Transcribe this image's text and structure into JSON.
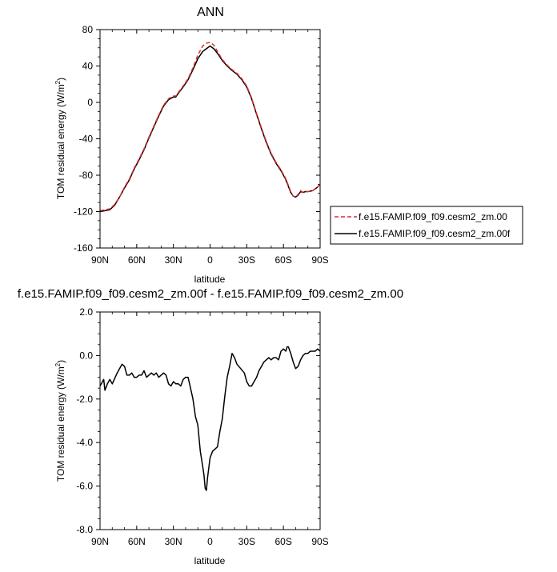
{
  "chart_data": [
    {
      "type": "line",
      "title": "ANN",
      "xlabel": "latitude",
      "ylabel": "TOM residual energy (W/m",
      "ylabel_sup": "2",
      "ylabel_close": ")",
      "xlim": [
        90,
        -90
      ],
      "ylim": [
        -160,
        80
      ],
      "xticks": [
        {
          "value": 90,
          "label": "90N"
        },
        {
          "value": 60,
          "label": "60N"
        },
        {
          "value": 30,
          "label": "30N"
        },
        {
          "value": 0,
          "label": "0"
        },
        {
          "value": -30,
          "label": "30S"
        },
        {
          "value": -60,
          "label": "60S"
        },
        {
          "value": -90,
          "label": "90S"
        }
      ],
      "yticks": [
        {
          "value": 80,
          "label": "80"
        },
        {
          "value": 40,
          "label": "40"
        },
        {
          "value": 0,
          "label": "0"
        },
        {
          "value": -40,
          "label": "-40"
        },
        {
          "value": -80,
          "label": "-80"
        },
        {
          "value": -120,
          "label": "-120"
        },
        {
          "value": -160,
          "label": "-160"
        }
      ],
      "grid": false,
      "legend": "right",
      "series": [
        {
          "name": "f.e15.FAMIP.f09_f09.cesm2_zm.00",
          "color": "#e8282b",
          "dash": true,
          "x": [
            90,
            86,
            82,
            78,
            74,
            70,
            66,
            62,
            58,
            54,
            50,
            46,
            42,
            38,
            34,
            30,
            28,
            26,
            22,
            18,
            14,
            10,
            6,
            3,
            0,
            -3,
            -6,
            -10,
            -14,
            -18,
            -22,
            -26,
            -30,
            -34,
            -38,
            -42,
            -46,
            -50,
            -54,
            -58,
            -62,
            -66,
            -68,
            -70,
            -72,
            -74,
            -76,
            -78,
            -80,
            -84,
            -88,
            -90
          ],
          "y": [
            -119,
            -118,
            -117,
            -112,
            -104,
            -93,
            -84,
            -72,
            -62,
            -51,
            -38,
            -26,
            -14,
            -3,
            4,
            7,
            7,
            11,
            18,
            26,
            38,
            52,
            62,
            65,
            66,
            63,
            56,
            47,
            41,
            36,
            32,
            26,
            18,
            5,
            -12,
            -28,
            -43,
            -56,
            -66,
            -74,
            -84,
            -98,
            -103,
            -104,
            -101,
            -97,
            -99,
            -98,
            -98,
            -97,
            -93,
            -90
          ]
        },
        {
          "name": "f.e15.FAMIP.f09_f09.cesm2_zm.00f",
          "color": "#000000",
          "dash": false,
          "x": [
            90,
            86,
            82,
            78,
            74,
            70,
            66,
            62,
            58,
            54,
            50,
            46,
            42,
            38,
            34,
            30,
            28,
            26,
            22,
            18,
            14,
            10,
            6,
            3,
            0,
            -3,
            -6,
            -10,
            -14,
            -18,
            -22,
            -26,
            -30,
            -34,
            -38,
            -42,
            -46,
            -50,
            -54,
            -58,
            -62,
            -66,
            -68,
            -70,
            -72,
            -74,
            -76,
            -78,
            -80,
            -84,
            -88,
            -90
          ],
          "y": [
            -120,
            -119,
            -118,
            -113,
            -104,
            -94,
            -85,
            -73,
            -63,
            -52,
            -39,
            -27,
            -15,
            -4,
            3,
            6,
            6,
            10,
            17,
            25,
            36,
            48,
            56,
            59,
            62,
            59,
            54,
            46,
            40,
            35,
            31,
            25,
            17,
            4,
            -13,
            -29,
            -44,
            -57,
            -67,
            -75,
            -85,
            -99,
            -103,
            -104,
            -102,
            -98,
            -99,
            -98,
            -98,
            -97,
            -93,
            -90
          ]
        }
      ]
    },
    {
      "type": "line",
      "title": "f.e15.FAMIP.f09_f09.cesm2_zm.00f - f.e15.FAMIP.f09_f09.cesm2_zm.00",
      "xlabel": "latitude",
      "ylabel": "TOM residual energy (W/m",
      "ylabel_sup": "2",
      "ylabel_close": ")",
      "xlim": [
        90,
        -90
      ],
      "ylim": [
        -8.0,
        2.0
      ],
      "xticks": [
        {
          "value": 90,
          "label": "90N"
        },
        {
          "value": 60,
          "label": "60N"
        },
        {
          "value": 30,
          "label": "30N"
        },
        {
          "value": 0,
          "label": "0"
        },
        {
          "value": -30,
          "label": "30S"
        },
        {
          "value": -60,
          "label": "60S"
        },
        {
          "value": -90,
          "label": "90S"
        }
      ],
      "yticks": [
        {
          "value": 2,
          "label": "2.0"
        },
        {
          "value": 0,
          "label": "0.0"
        },
        {
          "value": -2,
          "label": "-2.0"
        },
        {
          "value": -4,
          "label": "-4.0"
        },
        {
          "value": -6,
          "label": "-6.0"
        },
        {
          "value": -8,
          "label": "-8.0"
        }
      ],
      "grid": false,
      "series": [
        {
          "color": "#000000",
          "dash": false,
          "x": [
            90,
            88,
            87,
            86,
            84,
            82,
            80,
            76,
            72,
            70,
            68,
            66,
            64,
            62,
            60,
            58,
            56,
            54,
            52,
            50,
            48,
            46,
            44,
            42,
            40,
            38,
            36,
            34,
            32,
            30,
            28,
            26,
            24,
            22,
            20,
            18,
            16,
            14,
            12,
            10,
            8,
            6,
            5,
            4,
            3,
            2,
            0,
            -2,
            -4,
            -6,
            -8,
            -10,
            -12,
            -14,
            -16,
            -18,
            -20,
            -22,
            -25,
            -28,
            -30,
            -32,
            -34,
            -36,
            -38,
            -40,
            -42,
            -44,
            -46,
            -48,
            -50,
            -52,
            -54,
            -56,
            -58,
            -60,
            -62,
            -63,
            -64,
            -66,
            -68,
            -70,
            -72,
            -74,
            -76,
            -78,
            -80,
            -82,
            -84,
            -86,
            -88,
            -90
          ],
          "y": [
            -1.4,
            -1.2,
            -1.1,
            -1.6,
            -1.3,
            -1.1,
            -1.3,
            -0.8,
            -0.4,
            -0.5,
            -0.9,
            -0.9,
            -0.8,
            -1.0,
            -1.0,
            -0.9,
            -0.9,
            -0.7,
            -1.0,
            -0.9,
            -0.8,
            -0.9,
            -0.8,
            -1.0,
            -0.9,
            -0.8,
            -0.9,
            -1.3,
            -1.4,
            -1.2,
            -1.3,
            -1.3,
            -1.4,
            -1.1,
            -1.0,
            -1.0,
            -1.5,
            -2.0,
            -2.8,
            -3.2,
            -4.4,
            -5.1,
            -5.5,
            -6.1,
            -6.2,
            -5.6,
            -4.7,
            -4.4,
            -4.3,
            -4.2,
            -3.5,
            -2.9,
            -1.9,
            -1.0,
            -0.5,
            0.1,
            -0.1,
            -0.4,
            -0.6,
            -0.8,
            -1.2,
            -1.4,
            -1.4,
            -1.2,
            -1.0,
            -0.7,
            -0.5,
            -0.3,
            -0.2,
            -0.1,
            -0.2,
            -0.1,
            -0.1,
            -0.2,
            0.2,
            0.3,
            0.2,
            0.4,
            0.4,
            0.1,
            -0.3,
            -0.6,
            -0.5,
            -0.2,
            0.0,
            0.1,
            0.1,
            0.2,
            0.2,
            0.2,
            0.3,
            0.2
          ]
        }
      ]
    }
  ]
}
